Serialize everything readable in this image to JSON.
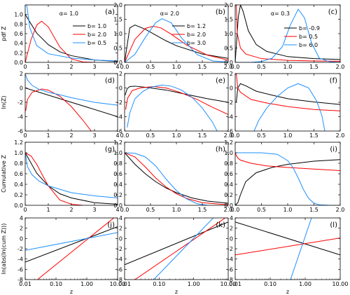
{
  "figure": {
    "column_params": [
      {
        "label": "α= 1.0",
        "b_values": [
          1.0,
          2.0,
          0.5
        ]
      },
      {
        "label": "α= 2.0",
        "b_values": [
          1.2,
          2.0,
          3.0
        ]
      },
      {
        "label": "α= 0.3",
        "b_values": [
          -0.9,
          0.5,
          6.0
        ]
      }
    ],
    "row_ylabels": [
      "pdf Z",
      "ln(Z)",
      "Cumulative Z",
      "ln(abs(ln(cum Z)))"
    ],
    "xlabel": "z",
    "series_colors": [
      "#000000",
      "#ff0000",
      "#1e90ff"
    ]
  },
  "chart_data": [
    {
      "panel": "(a)",
      "type": "line",
      "title": "",
      "xlabel": "",
      "ylabel": "pdf Z",
      "xlim": [
        0,
        4
      ],
      "ylim": [
        0,
        1.2
      ],
      "xticks": [
        0,
        1,
        2,
        3,
        4
      ],
      "yticks": [
        0.0,
        0.2,
        0.4,
        0.6,
        0.8,
        1.0
      ],
      "annotation": "α= 1.0",
      "legend_position": "top-right",
      "series": [
        {
          "name": "b= 1.0",
          "color": "#000000",
          "x": [
            0,
            0.5,
            1,
            1.5,
            2,
            3,
            4
          ],
          "y": [
            1.0,
            0.61,
            0.37,
            0.22,
            0.14,
            0.05,
            0.02
          ]
        },
        {
          "name": "b= 2.0",
          "color": "#ff0000",
          "x": [
            0,
            0.25,
            0.5,
            0.71,
            1,
            1.5,
            2,
            2.5,
            3
          ],
          "y": [
            0.0,
            0.47,
            0.78,
            0.86,
            0.74,
            0.32,
            0.07,
            0.01,
            0.0
          ]
        },
        {
          "name": "b= 0.5",
          "color": "#1e90ff",
          "x": [
            0.05,
            0.2,
            0.5,
            1,
            2,
            3,
            4
          ],
          "y": [
            1.26,
            0.72,
            0.35,
            0.18,
            0.09,
            0.05,
            0.03
          ]
        }
      ]
    },
    {
      "panel": "(b)",
      "type": "line",
      "title": "",
      "xlabel": "",
      "ylabel": "",
      "xlim": [
        0,
        2
      ],
      "ylim": [
        0,
        2
      ],
      "xticks": [
        0.0,
        0.5,
        1.0,
        1.5,
        2.0
      ],
      "yticks": [
        0.0,
        0.5,
        1.0,
        1.5,
        2.0
      ],
      "annotation": "α= 2.0",
      "legend_position": "top-right",
      "series": [
        {
          "name": "b= 1.2",
          "color": "#000000",
          "x": [
            0,
            0.1,
            0.2,
            0.4,
            0.6,
            0.8,
            1,
            1.5,
            2
          ],
          "y": [
            0.0,
            1.2,
            1.3,
            1.15,
            0.95,
            0.75,
            0.58,
            0.29,
            0.14
          ]
        },
        {
          "name": "b= 2.0",
          "color": "#ff0000",
          "x": [
            0,
            0.2,
            0.4,
            0.55,
            0.7,
            0.9,
            1.2,
            1.6,
            2
          ],
          "y": [
            0.0,
            0.8,
            1.18,
            1.26,
            1.2,
            0.98,
            0.6,
            0.25,
            0.08
          ]
        },
        {
          "name": "b= 3.0",
          "color": "#1e90ff",
          "x": [
            0,
            0.2,
            0.4,
            0.6,
            0.72,
            0.9,
            1.1,
            1.4,
            1.7,
            2
          ],
          "y": [
            0.0,
            0.28,
            0.87,
            1.38,
            1.52,
            1.38,
            0.85,
            0.27,
            0.05,
            0.01
          ]
        }
      ]
    },
    {
      "panel": "(c)",
      "type": "line",
      "title": "",
      "xlabel": "",
      "ylabel": "",
      "xlim": [
        0,
        2
      ],
      "ylim": [
        0,
        2
      ],
      "xticks": [
        0.0,
        0.5,
        1.0,
        1.5,
        2.0
      ],
      "yticks": [
        0.0,
        0.5,
        1.0,
        1.5,
        2.0
      ],
      "annotation": "α= 0.3",
      "legend_position": "right",
      "series": [
        {
          "name": "b= -0.9",
          "color": "#000000",
          "x": [
            0.0,
            0.06,
            0.1,
            0.15,
            0.25,
            0.4,
            0.6,
            1,
            1.5,
            2
          ],
          "y": [
            0.0,
            1.6,
            2.0,
            1.78,
            1.1,
            0.62,
            0.38,
            0.2,
            0.13,
            0.1
          ]
        },
        {
          "name": "b= 0.5",
          "color": "#ff0000",
          "x": [
            0.02,
            0.04,
            0.1,
            0.2,
            0.5,
            1,
            1.5,
            2
          ],
          "y": [
            2.0,
            1.0,
            0.5,
            0.29,
            0.13,
            0.07,
            0.05,
            0.04
          ]
        },
        {
          "name": "b= 6.0",
          "color": "#1e90ff",
          "x": [
            0,
            0.3,
            0.5,
            0.7,
            0.9,
            1.05,
            1.2,
            1.32,
            1.45,
            1.6,
            1.8,
            2
          ],
          "y": [
            0.0,
            0.0,
            0.03,
            0.14,
            0.55,
            1.3,
            1.85,
            1.55,
            0.7,
            0.15,
            0.02,
            0.0
          ]
        }
      ]
    },
    {
      "panel": "(d)",
      "type": "line",
      "title": "",
      "xlabel": "",
      "ylabel": "ln(Z)",
      "xlim": [
        0,
        4
      ],
      "ylim": [
        -6,
        2
      ],
      "xticks": [
        0,
        1,
        2,
        3,
        4
      ],
      "yticks": [
        -6,
        -4,
        -2,
        0,
        2
      ],
      "series": [
        {
          "name": "b= 1.0",
          "color": "#000000",
          "x": [
            0,
            4
          ],
          "y": [
            0.0,
            -4.0
          ]
        },
        {
          "name": "b= 2.0",
          "color": "#ff0000",
          "x": [
            0.02,
            0.1,
            0.3,
            0.71,
            1,
            1.5,
            2,
            2.5,
            3,
            3.15
          ],
          "y": [
            -3.2,
            -1.6,
            -0.6,
            -0.15,
            -0.3,
            -1.15,
            -2.6,
            -4.5,
            -6.6,
            -7.2
          ]
        },
        {
          "name": "b= 0.5",
          "color": "#1e90ff",
          "x": [
            0.02,
            0.1,
            0.3,
            0.6,
            1,
            1.5,
            2,
            3,
            4
          ],
          "y": [
            1.8,
            1.1,
            0.35,
            -0.2,
            -0.6,
            -0.95,
            -1.35,
            -2.0,
            -2.4
          ]
        }
      ]
    },
    {
      "panel": "(e)",
      "type": "line",
      "title": "",
      "xlabel": "",
      "ylabel": "",
      "xlim": [
        0,
        2
      ],
      "ylim": [
        -6,
        2
      ],
      "xticks": [
        0.0,
        0.5,
        1.0,
        1.5,
        2.0
      ],
      "yticks": [
        -6,
        -4,
        -2,
        0,
        2
      ],
      "series": [
        {
          "name": "b= 1.2",
          "color": "#000000",
          "x": [
            0.01,
            0.05,
            0.1,
            0.2,
            0.4,
            0.8,
            1.2,
            1.6,
            2
          ],
          "y": [
            -1.0,
            -0.1,
            0.2,
            0.25,
            0.1,
            -0.3,
            -0.9,
            -1.5,
            -2.0
          ]
        },
        {
          "name": "b= 2.0",
          "color": "#ff0000",
          "x": [
            0.02,
            0.06,
            0.15,
            0.3,
            0.55,
            0.8,
            1.1,
            1.4,
            1.7,
            2
          ],
          "y": [
            -3.0,
            -1.4,
            -0.35,
            0.0,
            0.2,
            0.0,
            -0.7,
            -1.6,
            -2.7,
            -3.7
          ]
        },
        {
          "name": "b= 3.0",
          "color": "#1e90ff",
          "x": [
            0.05,
            0.1,
            0.2,
            0.35,
            0.5,
            0.72,
            0.9,
            1.1,
            1.3,
            1.5,
            1.7,
            1.82
          ],
          "y": [
            -5.5,
            -3.5,
            -1.5,
            -0.5,
            0.1,
            0.4,
            0.25,
            -0.3,
            -1.3,
            -2.8,
            -4.8,
            -6.5
          ]
        }
      ]
    },
    {
      "panel": "(f)",
      "type": "line",
      "title": "",
      "xlabel": "",
      "ylabel": "",
      "xlim": [
        0,
        2
      ],
      "ylim": [
        -6,
        2
      ],
      "xticks": [
        0.0,
        0.5,
        1.0,
        1.5,
        2.0
      ],
      "yticks": [
        -6,
        -4,
        -2,
        0,
        2
      ],
      "series": [
        {
          "name": "b= -0.9",
          "color": "#000000",
          "x": [
            0.02,
            0.05,
            0.1,
            0.2,
            0.4,
            0.7,
            1,
            1.5,
            2
          ],
          "y": [
            -2.0,
            0.0,
            0.6,
            0.3,
            -0.45,
            -1.0,
            -1.5,
            -1.95,
            -2.3
          ]
        },
        {
          "name": "b= 0.5",
          "color": "#ff0000",
          "x": [
            0.02,
            0.05,
            0.1,
            0.3,
            0.6,
            1,
            1.5,
            2
          ],
          "y": [
            2.0,
            0.0,
            -0.6,
            -1.6,
            -2.1,
            -2.6,
            -3.0,
            -3.2
          ]
        },
        {
          "name": "b= 6.0",
          "color": "#1e90ff",
          "x": [
            0.33,
            0.45,
            0.6,
            0.8,
            1.0,
            1.2,
            1.4,
            1.55,
            1.65,
            1.72
          ],
          "y": [
            -6.5,
            -4.5,
            -2.8,
            -1.2,
            0.0,
            0.6,
            0.0,
            -1.8,
            -3.8,
            -6.5
          ]
        }
      ]
    },
    {
      "panel": "(g)",
      "type": "line",
      "title": "",
      "xlabel": "",
      "ylabel": "Cumulative Z",
      "xlim": [
        0,
        4
      ],
      "ylim": [
        0,
        1.2
      ],
      "xticks": [
        0,
        1,
        2,
        3,
        4
      ],
      "yticks": [
        0.0,
        0.2,
        0.4,
        0.6,
        0.8,
        1.0,
        1.2
      ],
      "series": [
        {
          "name": "b= 1.0",
          "color": "#000000",
          "x": [
            0,
            0.5,
            1,
            1.5,
            2,
            3,
            4
          ],
          "y": [
            1.0,
            0.61,
            0.37,
            0.22,
            0.14,
            0.05,
            0.02
          ]
        },
        {
          "name": "b= 2.0",
          "color": "#ff0000",
          "x": [
            0,
            0.25,
            0.5,
            0.75,
            1,
            1.5,
            2,
            2.5
          ],
          "y": [
            1.0,
            0.94,
            0.78,
            0.57,
            0.37,
            0.1,
            0.02,
            0.0
          ]
        },
        {
          "name": "b= 0.5",
          "color": "#1e90ff",
          "x": [
            0,
            0.1,
            0.3,
            0.6,
            1,
            2,
            3,
            4
          ],
          "y": [
            1.0,
            0.73,
            0.58,
            0.46,
            0.37,
            0.24,
            0.18,
            0.14
          ]
        }
      ]
    },
    {
      "panel": "(h)",
      "type": "line",
      "title": "",
      "xlabel": "",
      "ylabel": "",
      "xlim": [
        0,
        2
      ],
      "ylim": [
        0,
        1.2
      ],
      "xticks": [
        0.0,
        0.5,
        1.0,
        1.5,
        2.0
      ],
      "yticks": [
        0.0,
        0.2,
        0.4,
        0.6,
        0.8,
        1.0,
        1.2
      ],
      "series": [
        {
          "name": "b= 1.2",
          "color": "#000000",
          "x": [
            0,
            0.2,
            0.4,
            0.6,
            0.8,
            1,
            1.3,
            1.6,
            2
          ],
          "y": [
            1.0,
            0.78,
            0.6,
            0.45,
            0.33,
            0.24,
            0.14,
            0.08,
            0.04
          ]
        },
        {
          "name": "b= 2.0",
          "color": "#ff0000",
          "x": [
            0,
            0.2,
            0.4,
            0.6,
            0.8,
            1,
            1.2,
            1.5,
            2
          ],
          "y": [
            1.0,
            0.92,
            0.73,
            0.52,
            0.35,
            0.22,
            0.13,
            0.05,
            0.01
          ]
        },
        {
          "name": "b= 3.0",
          "color": "#1e90ff",
          "x": [
            0,
            0.2,
            0.4,
            0.6,
            0.8,
            1.0,
            1.2,
            1.4,
            1.6
          ],
          "y": [
            1.0,
            0.99,
            0.92,
            0.75,
            0.5,
            0.28,
            0.12,
            0.03,
            0.0
          ]
        }
      ]
    },
    {
      "panel": "(i)",
      "type": "line",
      "title": "",
      "xlabel": "",
      "ylabel": "",
      "xlim": [
        0,
        2
      ],
      "ylim": [
        0,
        1.2
      ],
      "xticks": [
        0.0,
        0.5,
        1.0,
        1.5,
        2.0
      ],
      "yticks": [
        0.0,
        0.2,
        0.4,
        0.6,
        0.8,
        1.0,
        1.2
      ],
      "series": [
        {
          "name": "b= -0.9",
          "color": "#000000",
          "x": [
            0,
            0.05,
            0.1,
            0.2,
            0.4,
            0.7,
            1,
            1.5,
            2
          ],
          "y": [
            0.0,
            0.05,
            0.2,
            0.45,
            0.62,
            0.72,
            0.78,
            0.84,
            0.87
          ]
        },
        {
          "name": "b= 0.5",
          "color": "#ff0000",
          "x": [
            0,
            0.02,
            0.05,
            0.1,
            0.3,
            0.6,
            1,
            1.5,
            2
          ],
          "y": [
            1.0,
            0.95,
            0.9,
            0.86,
            0.8,
            0.75,
            0.72,
            0.69,
            0.66
          ]
        },
        {
          "name": "b= 6.0",
          "color": "#1e90ff",
          "x": [
            0,
            0.5,
            0.8,
            1.0,
            1.1,
            1.2,
            1.3,
            1.4,
            1.5,
            1.6,
            1.8,
            2
          ],
          "y": [
            1.0,
            1.0,
            0.97,
            0.85,
            0.72,
            0.52,
            0.3,
            0.13,
            0.04,
            0.01,
            0.0,
            0.0
          ]
        }
      ]
    },
    {
      "panel": "(j)",
      "type": "line",
      "title": "",
      "xlabel": "z",
      "ylabel": "ln(abs(ln(cum Z)))",
      "xscale": "log",
      "xlim": [
        0.01,
        10
      ],
      "ylim": [
        -8,
        4
      ],
      "xticks": [
        0.01,
        0.1,
        1.0,
        10.0
      ],
      "yticks": [
        -8,
        -6,
        -4,
        -2,
        0,
        2,
        4
      ],
      "series": [
        {
          "name": "b= 1.0",
          "color": "#000000",
          "x": [
            0.01,
            10
          ],
          "y": [
            -4.6,
            2.3
          ]
        },
        {
          "name": "b= 2.0",
          "color": "#ff0000",
          "x": [
            0.025,
            10
          ],
          "y": [
            -8.0,
            4.6
          ]
        },
        {
          "name": "b= 0.5",
          "color": "#1e90ff",
          "x": [
            0.01,
            10
          ],
          "y": [
            -2.3,
            1.15
          ]
        }
      ]
    },
    {
      "panel": "(k)",
      "type": "line",
      "title": "",
      "xlabel": "z",
      "ylabel": "",
      "xscale": "log",
      "xlim": [
        0.01,
        10
      ],
      "ylim": [
        -8,
        4
      ],
      "xticks": [
        0.01,
        0.1,
        1.0,
        10.0
      ],
      "yticks": [
        -8,
        -6,
        -4,
        -2,
        0,
        2,
        4
      ],
      "series": [
        {
          "name": "b= 1.2",
          "color": "#000000",
          "x": [
            0.01,
            10
          ],
          "y": [
            -5.1,
            3.2
          ]
        },
        {
          "name": "b= 2.0",
          "color": "#ff0000",
          "x": [
            0.02,
            10
          ],
          "y": [
            -8.0,
            4.4
          ]
        },
        {
          "name": "b= 3.0",
          "color": "#1e90ff",
          "x": [
            0.065,
            10
          ],
          "y": [
            -8.2,
            7.0
          ]
        }
      ]
    },
    {
      "panel": "(l)",
      "type": "line",
      "title": "",
      "xlabel": "z",
      "ylabel": "",
      "xscale": "log",
      "xlim": [
        0.01,
        10
      ],
      "ylim": [
        -8,
        4
      ],
      "xticks": [
        0.01,
        0.1,
        1.0,
        10.0
      ],
      "yticks": [
        -8,
        -6,
        -4,
        -2,
        0,
        2,
        4
      ],
      "series": [
        {
          "name": "b= -0.9",
          "color": "#000000",
          "x": [
            0.01,
            10
          ],
          "y": [
            3.2,
            -3.2
          ]
        },
        {
          "name": "b= 0.5",
          "color": "#ff0000",
          "x": [
            0.01,
            10
          ],
          "y": [
            -3.2,
            0.1
          ]
        },
        {
          "name": "b= 6.0",
          "color": "#1e90ff",
          "x": [
            0.38,
            1.7
          ],
          "y": [
            -8.0,
            5.0
          ]
        }
      ]
    }
  ]
}
